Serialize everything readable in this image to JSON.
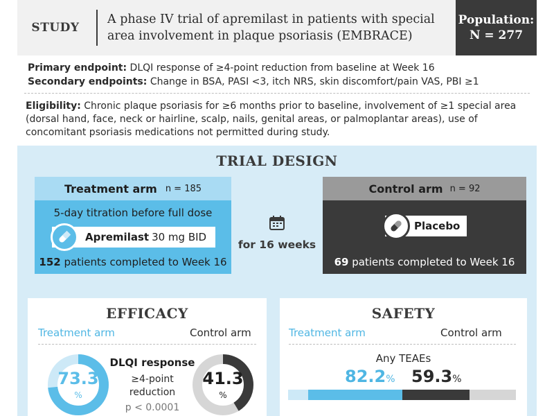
{
  "header": {
    "study_label": "STUDY",
    "title": "A phase IV trial of apremilast in patients with special area involvement in plaque psoriasis (EMBRACE)",
    "population_label": "Population:",
    "population_value": "N = 277"
  },
  "endpoints": {
    "primary_label": "Primary endpoint:",
    "primary_text": "DLQI response of ≥4-point reduction from baseline at Week 16",
    "secondary_label": "Secondary endpoints:",
    "secondary_text": "Change in BSA, PASI <3, itch NRS, skin discomfort/pain VAS, PBI ≥1"
  },
  "eligibility": {
    "label": "Eligibility:",
    "text": "Chronic plaque psoriasis for ≥6 months prior to baseline, involvement of ≥1 special area (dorsal hand, face, neck or hairline, scalp, nails, genital areas, or palmoplantar areas), use of concomitant psoriasis medications not permitted during study."
  },
  "trial_design": {
    "title": "TRIAL DESIGN",
    "treatment_arm": {
      "label": "Treatment arm",
      "n": "n = 185",
      "titration": "5-day titration before full dose",
      "drug_name": "Apremilast",
      "drug_dose": "30 mg BID",
      "completed_count": "152",
      "completed_text": "patients completed to Week 16"
    },
    "duration": "for 16 weeks",
    "control_arm": {
      "label": "Control arm",
      "n": "n = 92",
      "drug_name": "Placebo",
      "completed_count": "69",
      "completed_text": "patients completed to Week 16"
    }
  },
  "efficacy": {
    "title": "EFFICACY",
    "treatment_label": "Treatment arm",
    "control_label": "Control arm",
    "treatment_value": 73.3,
    "treatment_value_text": "73.3",
    "control_value": 41.3,
    "control_value_text": "41.3",
    "pct": "%",
    "measure": "DLQI response",
    "measure_sub_1": "≥4-point",
    "measure_sub_2": "reduction",
    "p_value": "p < 0.0001"
  },
  "safety": {
    "title": "SAFETY",
    "treatment_label": "Treatment arm",
    "control_label": "Control arm",
    "measure": "Any TEAEs",
    "treatment_value": 82.2,
    "treatment_value_text": "82.2",
    "control_value": 59.3,
    "control_value_text": "59.3",
    "pct": "%"
  },
  "colors": {
    "accent_blue": "#5bbde8",
    "light_blue": "#d7ecf7",
    "dark_gray": "#3a3a3a",
    "mid_gray": "#9a9a9a"
  }
}
